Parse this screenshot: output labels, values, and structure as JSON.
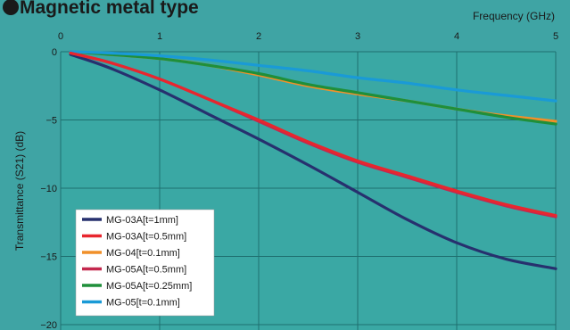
{
  "chart_data": {
    "type": "line",
    "title": "Magnetic metal type",
    "xlabel": "Frequency (GHz)",
    "ylabel": "Transmittance (S21) (dB)",
    "xlim": [
      0,
      5
    ],
    "ylim": [
      -20,
      0
    ],
    "x_ticks": [
      0,
      1,
      2,
      3,
      4,
      5
    ],
    "y_ticks": [
      0,
      -5,
      -10,
      -15,
      -20
    ],
    "x_tick_labels": [
      "0",
      "1",
      "2",
      "3",
      "4",
      "5"
    ],
    "y_tick_labels": [
      "0",
      "−5",
      "−10",
      "−15",
      "−20"
    ],
    "x_axis_position": "top",
    "grid": true,
    "legend_position": "bottom-left",
    "colors": {
      "background": "#3fa4a4",
      "plot_background": "#3aa8a4",
      "grid": "#1f6f6f",
      "legend_background": "#ffffff"
    },
    "series": [
      {
        "name": "MG-03A[t=1mm]",
        "color": "#27306e",
        "x": [
          0.1,
          0.5,
          1,
          1.5,
          2,
          2.5,
          3,
          3.5,
          4,
          4.5,
          5
        ],
        "y": [
          -0.2,
          -1.2,
          -2.8,
          -4.6,
          -6.4,
          -8.3,
          -10.3,
          -12.3,
          -14.0,
          -15.2,
          -15.9
        ]
      },
      {
        "name": "MG-03A[t=0.5mm]",
        "color": "#e8262e",
        "x": [
          0.1,
          0.5,
          1,
          1.5,
          2,
          2.5,
          3,
          3.5,
          4,
          4.5,
          5
        ],
        "y": [
          -0.1,
          -0.8,
          -2.0,
          -3.5,
          -5.0,
          -6.6,
          -8.0,
          -9.1,
          -10.2,
          -11.2,
          -12.0
        ]
      },
      {
        "name": "MG-04[t=0.1mm]",
        "color": "#f0902a",
        "x": [
          0.1,
          0.5,
          1,
          1.5,
          2,
          2.5,
          3,
          3.5,
          4,
          4.5,
          5
        ],
        "y": [
          0,
          -0.2,
          -0.5,
          -1.0,
          -1.7,
          -2.5,
          -3.1,
          -3.6,
          -4.2,
          -4.7,
          -5.1
        ]
      },
      {
        "name": "MG-05A[t=0.5mm]",
        "color": "#c4284e",
        "x": [
          0.1,
          0.5,
          1,
          1.5,
          2,
          2.5,
          3,
          3.5,
          4,
          4.5,
          5
        ],
        "y": [
          -0.1,
          -0.8,
          -2.0,
          -3.5,
          -5.1,
          -6.7,
          -8.1,
          -9.2,
          -10.3,
          -11.3,
          -12.1
        ]
      },
      {
        "name": "MG-05A[t=0.25mm]",
        "color": "#1f8f3a",
        "x": [
          0.1,
          0.5,
          1,
          1.5,
          2,
          2.5,
          3,
          3.5,
          4,
          4.5,
          5
        ],
        "y": [
          0,
          -0.2,
          -0.5,
          -1.0,
          -1.6,
          -2.4,
          -3.0,
          -3.6,
          -4.2,
          -4.8,
          -5.3
        ]
      },
      {
        "name": "MG-05[t=0.1mm]",
        "color": "#1a9ad6",
        "x": [
          0.1,
          0.5,
          1,
          1.5,
          2,
          2.5,
          3,
          3.5,
          4,
          4.5,
          5
        ],
        "y": [
          0,
          -0.1,
          -0.3,
          -0.6,
          -1.0,
          -1.4,
          -1.9,
          -2.3,
          -2.8,
          -3.2,
          -3.6
        ]
      }
    ]
  }
}
